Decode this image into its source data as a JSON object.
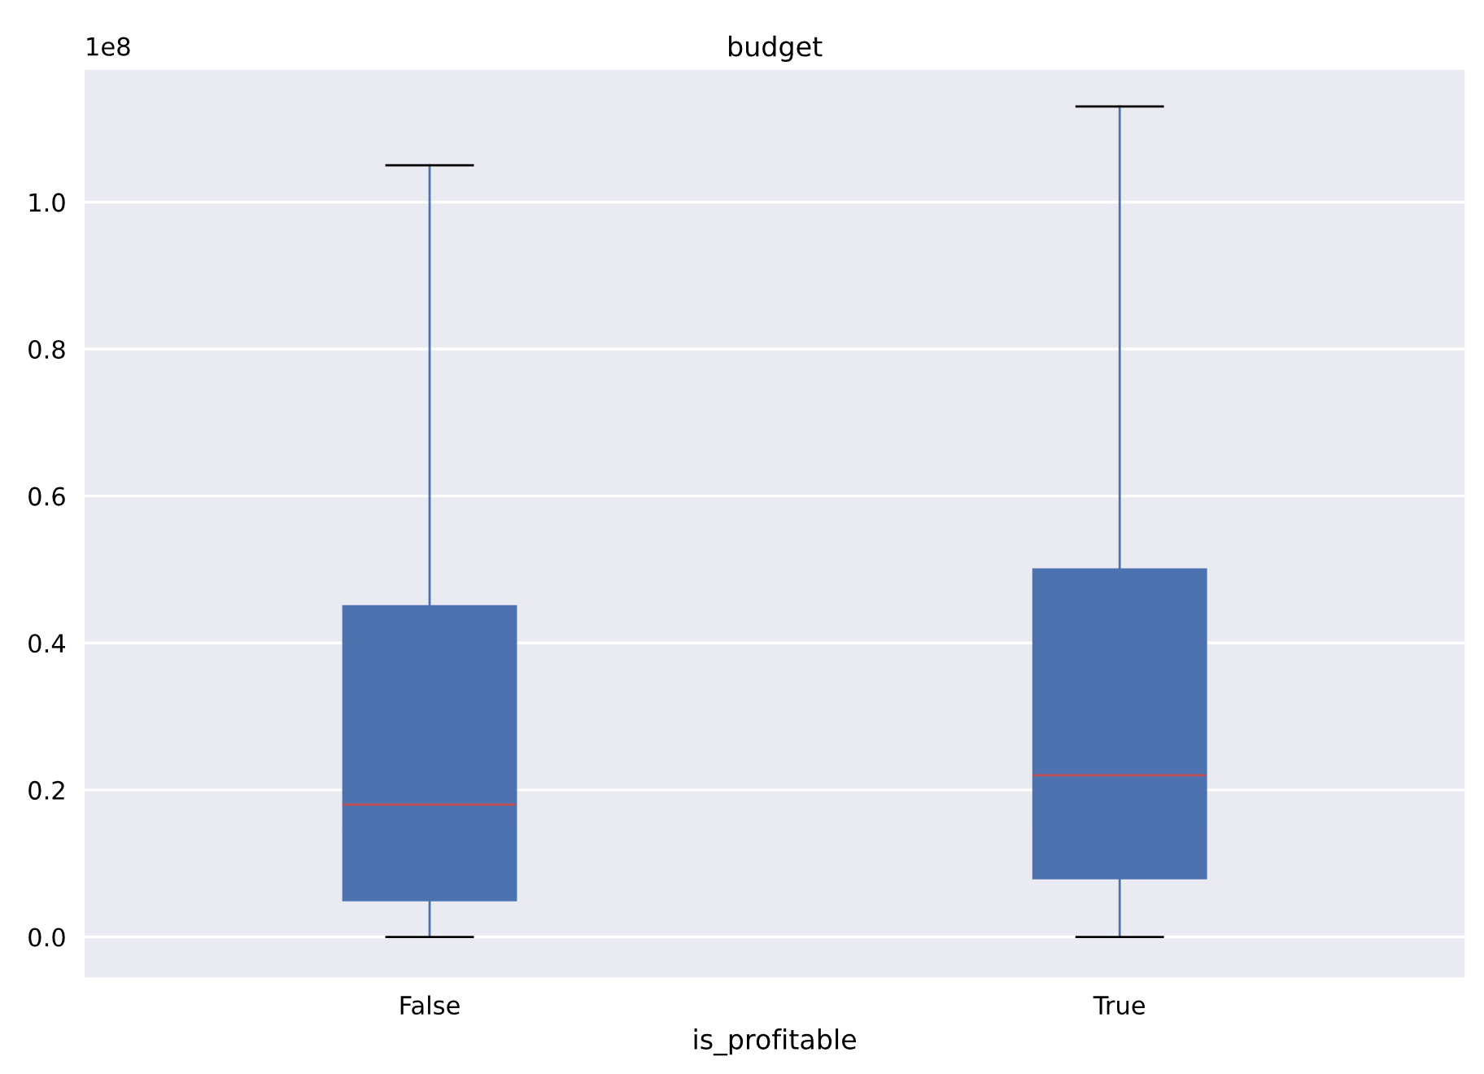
{
  "chart_data": {
    "type": "box",
    "title": "budget",
    "xlabel": "is_profitable",
    "categories": [
      "False",
      "True"
    ],
    "boxes": [
      {
        "low": 0,
        "q1": 0.05,
        "median": 0.18,
        "q3": 0.45,
        "high": 1.05
      },
      {
        "low": 0,
        "q1": 0.08,
        "median": 0.22,
        "q3": 0.5,
        "high": 1.13
      }
    ],
    "color": "#4c72b0",
    "ylim": [
      -0.055,
      1.18
    ],
    "yticks": [
      {
        "value": 0,
        "label": "0.0"
      },
      0.2,
      0.4,
      0.6,
      0.8,
      {
        "value": 1,
        "label": "1.0"
      }
    ],
    "annotations": [
      "1e8"
    ],
    "grid": true
  }
}
